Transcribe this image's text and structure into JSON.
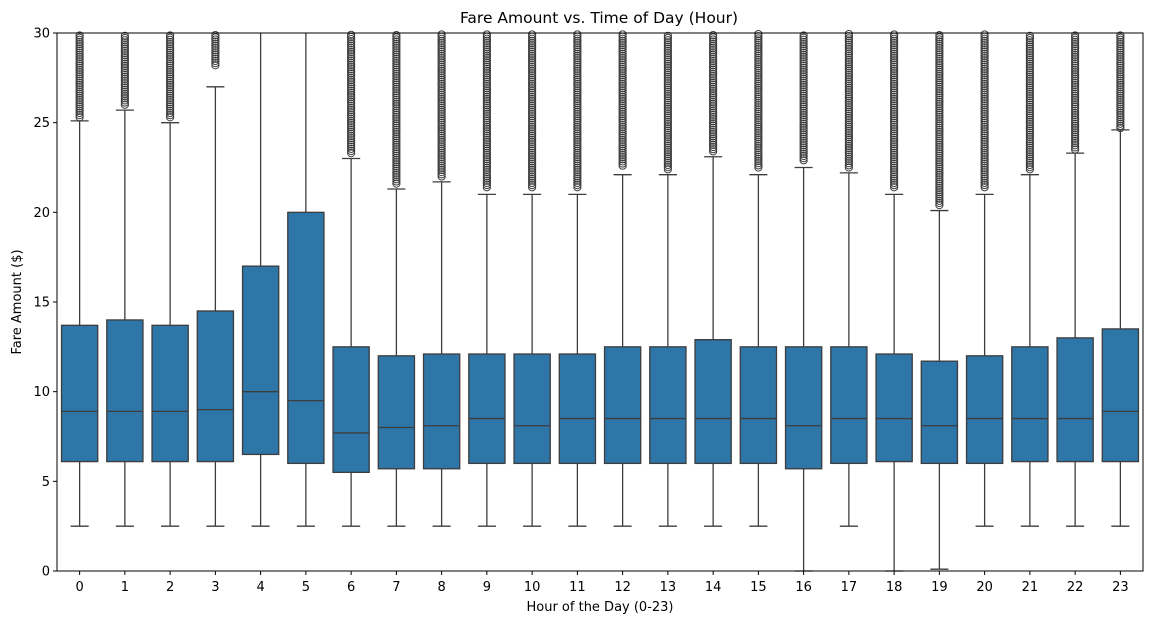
{
  "chart_data": {
    "type": "box",
    "title": "Fare Amount vs. Time of Day (Hour)",
    "xlabel": "Hour of the Day (0-23)",
    "ylabel": "Fare Amount ($)",
    "ylim": [
      0,
      30
    ],
    "yticks": [
      0,
      5,
      10,
      15,
      20,
      25,
      30
    ],
    "categories": [
      "0",
      "1",
      "2",
      "3",
      "4",
      "5",
      "6",
      "7",
      "8",
      "9",
      "10",
      "11",
      "12",
      "13",
      "14",
      "15",
      "16",
      "17",
      "18",
      "19",
      "20",
      "21",
      "22",
      "23"
    ],
    "grid": false,
    "legend": "none",
    "box_color": "#2e75a8",
    "edge_color": "#3d3d3d",
    "boxes": [
      {
        "whislo": 2.5,
        "q1": 6.1,
        "med": 8.9,
        "q3": 13.7,
        "whishi": 25.1,
        "fliers_from": 25.3
      },
      {
        "whislo": 2.5,
        "q1": 6.1,
        "med": 8.9,
        "q3": 14.0,
        "whishi": 25.7,
        "fliers_from": 26.0
      },
      {
        "whislo": 2.5,
        "q1": 6.1,
        "med": 8.9,
        "q3": 13.7,
        "whishi": 25.0,
        "fliers_from": 25.3
      },
      {
        "whislo": 2.5,
        "q1": 6.1,
        "med": 9.0,
        "q3": 14.5,
        "whishi": 27.0,
        "fliers_from": 28.2
      },
      {
        "whislo": 2.5,
        "q1": 6.5,
        "med": 10.0,
        "q3": 17.0,
        "whishi": 30.0,
        "fliers_from": null
      },
      {
        "whislo": 2.5,
        "q1": 6.0,
        "med": 9.5,
        "q3": 20.0,
        "whishi": 30.0,
        "fliers_from": null
      },
      {
        "whislo": 2.5,
        "q1": 5.5,
        "med": 7.7,
        "q3": 12.5,
        "whishi": 23.0,
        "fliers_from": 23.3
      },
      {
        "whislo": 2.5,
        "q1": 5.7,
        "med": 8.0,
        "q3": 12.0,
        "whishi": 21.3,
        "fliers_from": 21.6
      },
      {
        "whislo": 2.5,
        "q1": 5.7,
        "med": 8.1,
        "q3": 12.1,
        "whishi": 21.7,
        "fliers_from": 22.0
      },
      {
        "whislo": 2.5,
        "q1": 6.0,
        "med": 8.5,
        "q3": 12.1,
        "whishi": 21.0,
        "fliers_from": 21.4
      },
      {
        "whislo": 2.5,
        "q1": 6.0,
        "med": 8.1,
        "q3": 12.1,
        "whishi": 21.0,
        "fliers_from": 21.4
      },
      {
        "whislo": 2.5,
        "q1": 6.0,
        "med": 8.5,
        "q3": 12.1,
        "whishi": 21.0,
        "fliers_from": 21.4
      },
      {
        "whislo": 2.5,
        "q1": 6.0,
        "med": 8.5,
        "q3": 12.5,
        "whishi": 22.1,
        "fliers_from": 22.6
      },
      {
        "whislo": 2.5,
        "q1": 6.0,
        "med": 8.5,
        "q3": 12.5,
        "whishi": 22.1,
        "fliers_from": 22.4
      },
      {
        "whislo": 2.5,
        "q1": 6.0,
        "med": 8.5,
        "q3": 12.9,
        "whishi": 23.1,
        "fliers_from": 23.4
      },
      {
        "whislo": 2.5,
        "q1": 6.0,
        "med": 8.5,
        "q3": 12.5,
        "whishi": 22.1,
        "fliers_from": 22.5
      },
      {
        "whislo": 0.0,
        "q1": 5.7,
        "med": 8.1,
        "q3": 12.5,
        "whishi": 22.5,
        "fliers_from": 22.9
      },
      {
        "whislo": 2.5,
        "q1": 6.0,
        "med": 8.5,
        "q3": 12.5,
        "whishi": 22.2,
        "fliers_from": 22.5
      },
      {
        "whislo": 0.0,
        "q1": 6.1,
        "med": 8.5,
        "q3": 12.1,
        "whishi": 21.0,
        "fliers_from": 21.4
      },
      {
        "whislo": 0.1,
        "q1": 6.0,
        "med": 8.1,
        "q3": 11.7,
        "whishi": 20.1,
        "fliers_from": 20.4
      },
      {
        "whislo": 2.5,
        "q1": 6.0,
        "med": 8.5,
        "q3": 12.0,
        "whishi": 21.0,
        "fliers_from": 21.4
      },
      {
        "whislo": 2.5,
        "q1": 6.1,
        "med": 8.5,
        "q3": 12.5,
        "whishi": 22.1,
        "fliers_from": 22.4
      },
      {
        "whislo": 2.5,
        "q1": 6.1,
        "med": 8.5,
        "q3": 13.0,
        "whishi": 23.3,
        "fliers_from": 23.5
      },
      {
        "whislo": 2.5,
        "q1": 6.1,
        "med": 8.9,
        "q3": 13.5,
        "whishi": 24.6,
        "fliers_from": 24.7
      }
    ]
  }
}
